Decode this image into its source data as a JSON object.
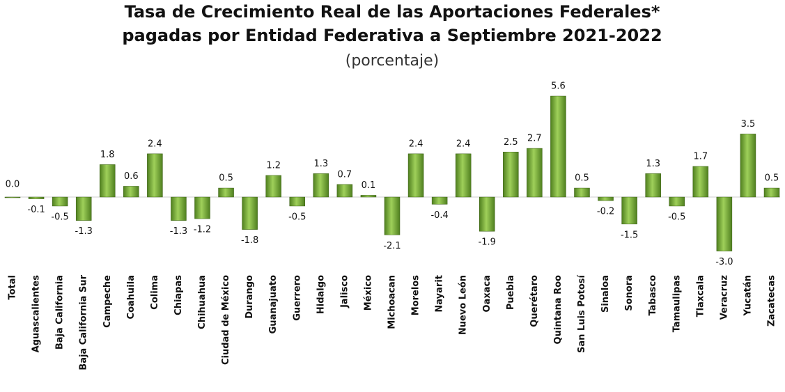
{
  "chart_data": {
    "type": "bar",
    "title": [
      "Tasa de Crecimiento Real de las Aportaciones Federales*",
      "pagadas por Entidad Federativa a Septiembre 2021-2022"
    ],
    "subtitle": "(porcentaje)",
    "color": "#4f7f1f",
    "categories": [
      "Total",
      "Aguascalientes",
      "Baja California",
      "Baja California Sur",
      "Campeche",
      "Coahuila",
      "Colima",
      "Chiapas",
      "Chihuahua",
      "Ciudad de México",
      "Durango",
      "Guanajuato",
      "Guerrero",
      "Hidalgo",
      "Jalisco",
      "México",
      "Michoacan",
      "Morelos",
      "Nayarit",
      "Nuevo León",
      "Oaxaca",
      "Puebla",
      "Querétaro",
      "Quintana Roo",
      "San Luis Potosí",
      "Sinaloa",
      "Sonora",
      "Tabasco",
      "Tamaulipas",
      "Tlaxcala",
      "Veracruz",
      "Yucatán",
      "Zacatecas"
    ],
    "values": [
      0,
      -0.1,
      -0.5,
      -1.3,
      1.8,
      0.6,
      2.4,
      -1.3,
      -1.2,
      0.5,
      -1.8,
      1.2,
      -0.5,
      1.3,
      0.7,
      0.1,
      -2.1,
      2.4,
      -0.4,
      2.4,
      -1.9,
      2.5,
      2.7,
      5.6,
      0.5,
      -0.2,
      -1.5,
      1.3,
      -0.5,
      1.7,
      -3.0,
      3.5,
      0.5
    ],
    "value_labels": [
      "0.0",
      "-0.1",
      "-0.5",
      "-1.3",
      "1.8",
      "0.6",
      "2.4",
      "-1.3",
      "-1.2",
      "0.5",
      "-1.8",
      "1.2",
      "-0.5",
      "1.3",
      "0.7",
      "0.1",
      "-2.1",
      "2.4",
      "-0.4",
      "2.4",
      "-1.9",
      "2.5",
      "2.7",
      "5.6",
      "0.5",
      "-0.2",
      "-1.5",
      "1.3",
      "-0.5",
      "1.7",
      "-3.0",
      "3.5",
      "0.5"
    ]
  }
}
